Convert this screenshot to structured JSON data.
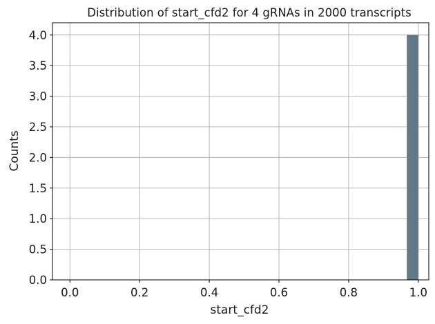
{
  "chart_data": {
    "type": "bar",
    "title": "Distribution of start_cfd2 for 4 gRNAs in 2000 transcripts",
    "xlabel": "start_cfd2",
    "ylabel": "Counts",
    "xlim": [
      -0.05,
      1.03
    ],
    "ylim": [
      0,
      4.2
    ],
    "xticks": [
      "0.0",
      "0.2",
      "0.4",
      "0.6",
      "0.8",
      "1.0"
    ],
    "yticks": [
      "0.0",
      "0.5",
      "1.0",
      "1.5",
      "2.0",
      "2.5",
      "3.0",
      "3.5",
      "4.0"
    ],
    "bins": [
      {
        "x0": 0.967,
        "x1": 1.0,
        "count": 4
      }
    ],
    "bar_color": "#607888",
    "grid": true
  }
}
